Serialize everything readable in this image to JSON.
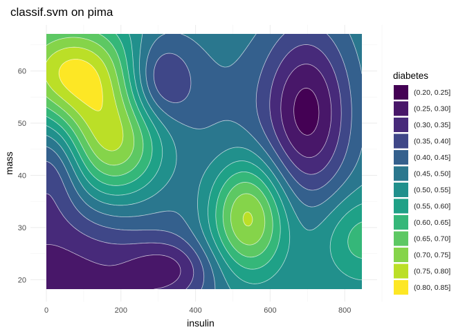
{
  "chart_data": {
    "type": "heatmap",
    "subtype": "filled-contour",
    "title": "classif.svm on pima",
    "xlabel": "insulin",
    "ylabel": "mass",
    "xlim": [
      0,
      846
    ],
    "ylim": [
      18.2,
      67.1
    ],
    "x_ticks": [
      0,
      200,
      400,
      600,
      800
    ],
    "y_ticks": [
      20,
      30,
      40,
      50,
      60
    ],
    "grid": true,
    "legend": {
      "title": "diabetes",
      "position": "right",
      "levels": [
        {
          "label": "(0.20, 0.25]",
          "color": "#440154"
        },
        {
          "label": "(0.25, 0.30]",
          "color": "#481769"
        },
        {
          "label": "(0.30, 0.35]",
          "color": "#472A7A"
        },
        {
          "label": "(0.35, 0.40]",
          "color": "#3F4788"
        },
        {
          "label": "(0.40, 0.45]",
          "color": "#34608D"
        },
        {
          "label": "(0.45, 0.50]",
          "color": "#2A778E"
        },
        {
          "label": "(0.50, 0.55]",
          "color": "#21908C"
        },
        {
          "label": "(0.55, 0.60]",
          "color": "#1FA187"
        },
        {
          "label": "(0.60, 0.65]",
          "color": "#35B779"
        },
        {
          "label": "(0.65, 0.70]",
          "color": "#5DC863"
        },
        {
          "label": "(0.70, 0.75]",
          "color": "#85D44A"
        },
        {
          "label": "(0.75, 0.80]",
          "color": "#BBDF27"
        },
        {
          "label": "(0.80, 0.85]",
          "color": "#FDE725"
        }
      ]
    },
    "surface": {
      "baseline": 0.5,
      "features": [
        {
          "insulin": 0,
          "mass": 18,
          "delta": -0.24,
          "spread_insulin": 260,
          "spread_mass": 13
        },
        {
          "insulin": 20,
          "mass": 42,
          "delta": -0.13,
          "spread_insulin": 60,
          "spread_mass": 7
        },
        {
          "insulin": 330,
          "mass": 22,
          "delta": -0.12,
          "spread_insulin": 85,
          "spread_mass": 4
        },
        {
          "insulin": 70,
          "mass": 60,
          "delta": 0.3,
          "spread_insulin": 120,
          "spread_mass": 7
        },
        {
          "insulin": 180,
          "mass": 46,
          "delta": 0.28,
          "spread_insulin": 100,
          "spread_mass": 8
        },
        {
          "insulin": 300,
          "mass": 58,
          "delta": -0.17,
          "spread_insulin": 65,
          "spread_mass": 6
        },
        {
          "insulin": 700,
          "mass": 52,
          "delta": -0.26,
          "spread_insulin": 85,
          "spread_mass": 12
        },
        {
          "insulin": 540,
          "mass": 32,
          "delta": 0.3,
          "spread_insulin": 75,
          "spread_mass": 8
        },
        {
          "insulin": 846,
          "mass": 28,
          "delta": 0.13,
          "spread_insulin": 80,
          "spread_mass": 6
        },
        {
          "insulin": 420,
          "mass": 50,
          "delta": -0.06,
          "spread_insulin": 150,
          "spread_mass": 14
        }
      ]
    }
  }
}
